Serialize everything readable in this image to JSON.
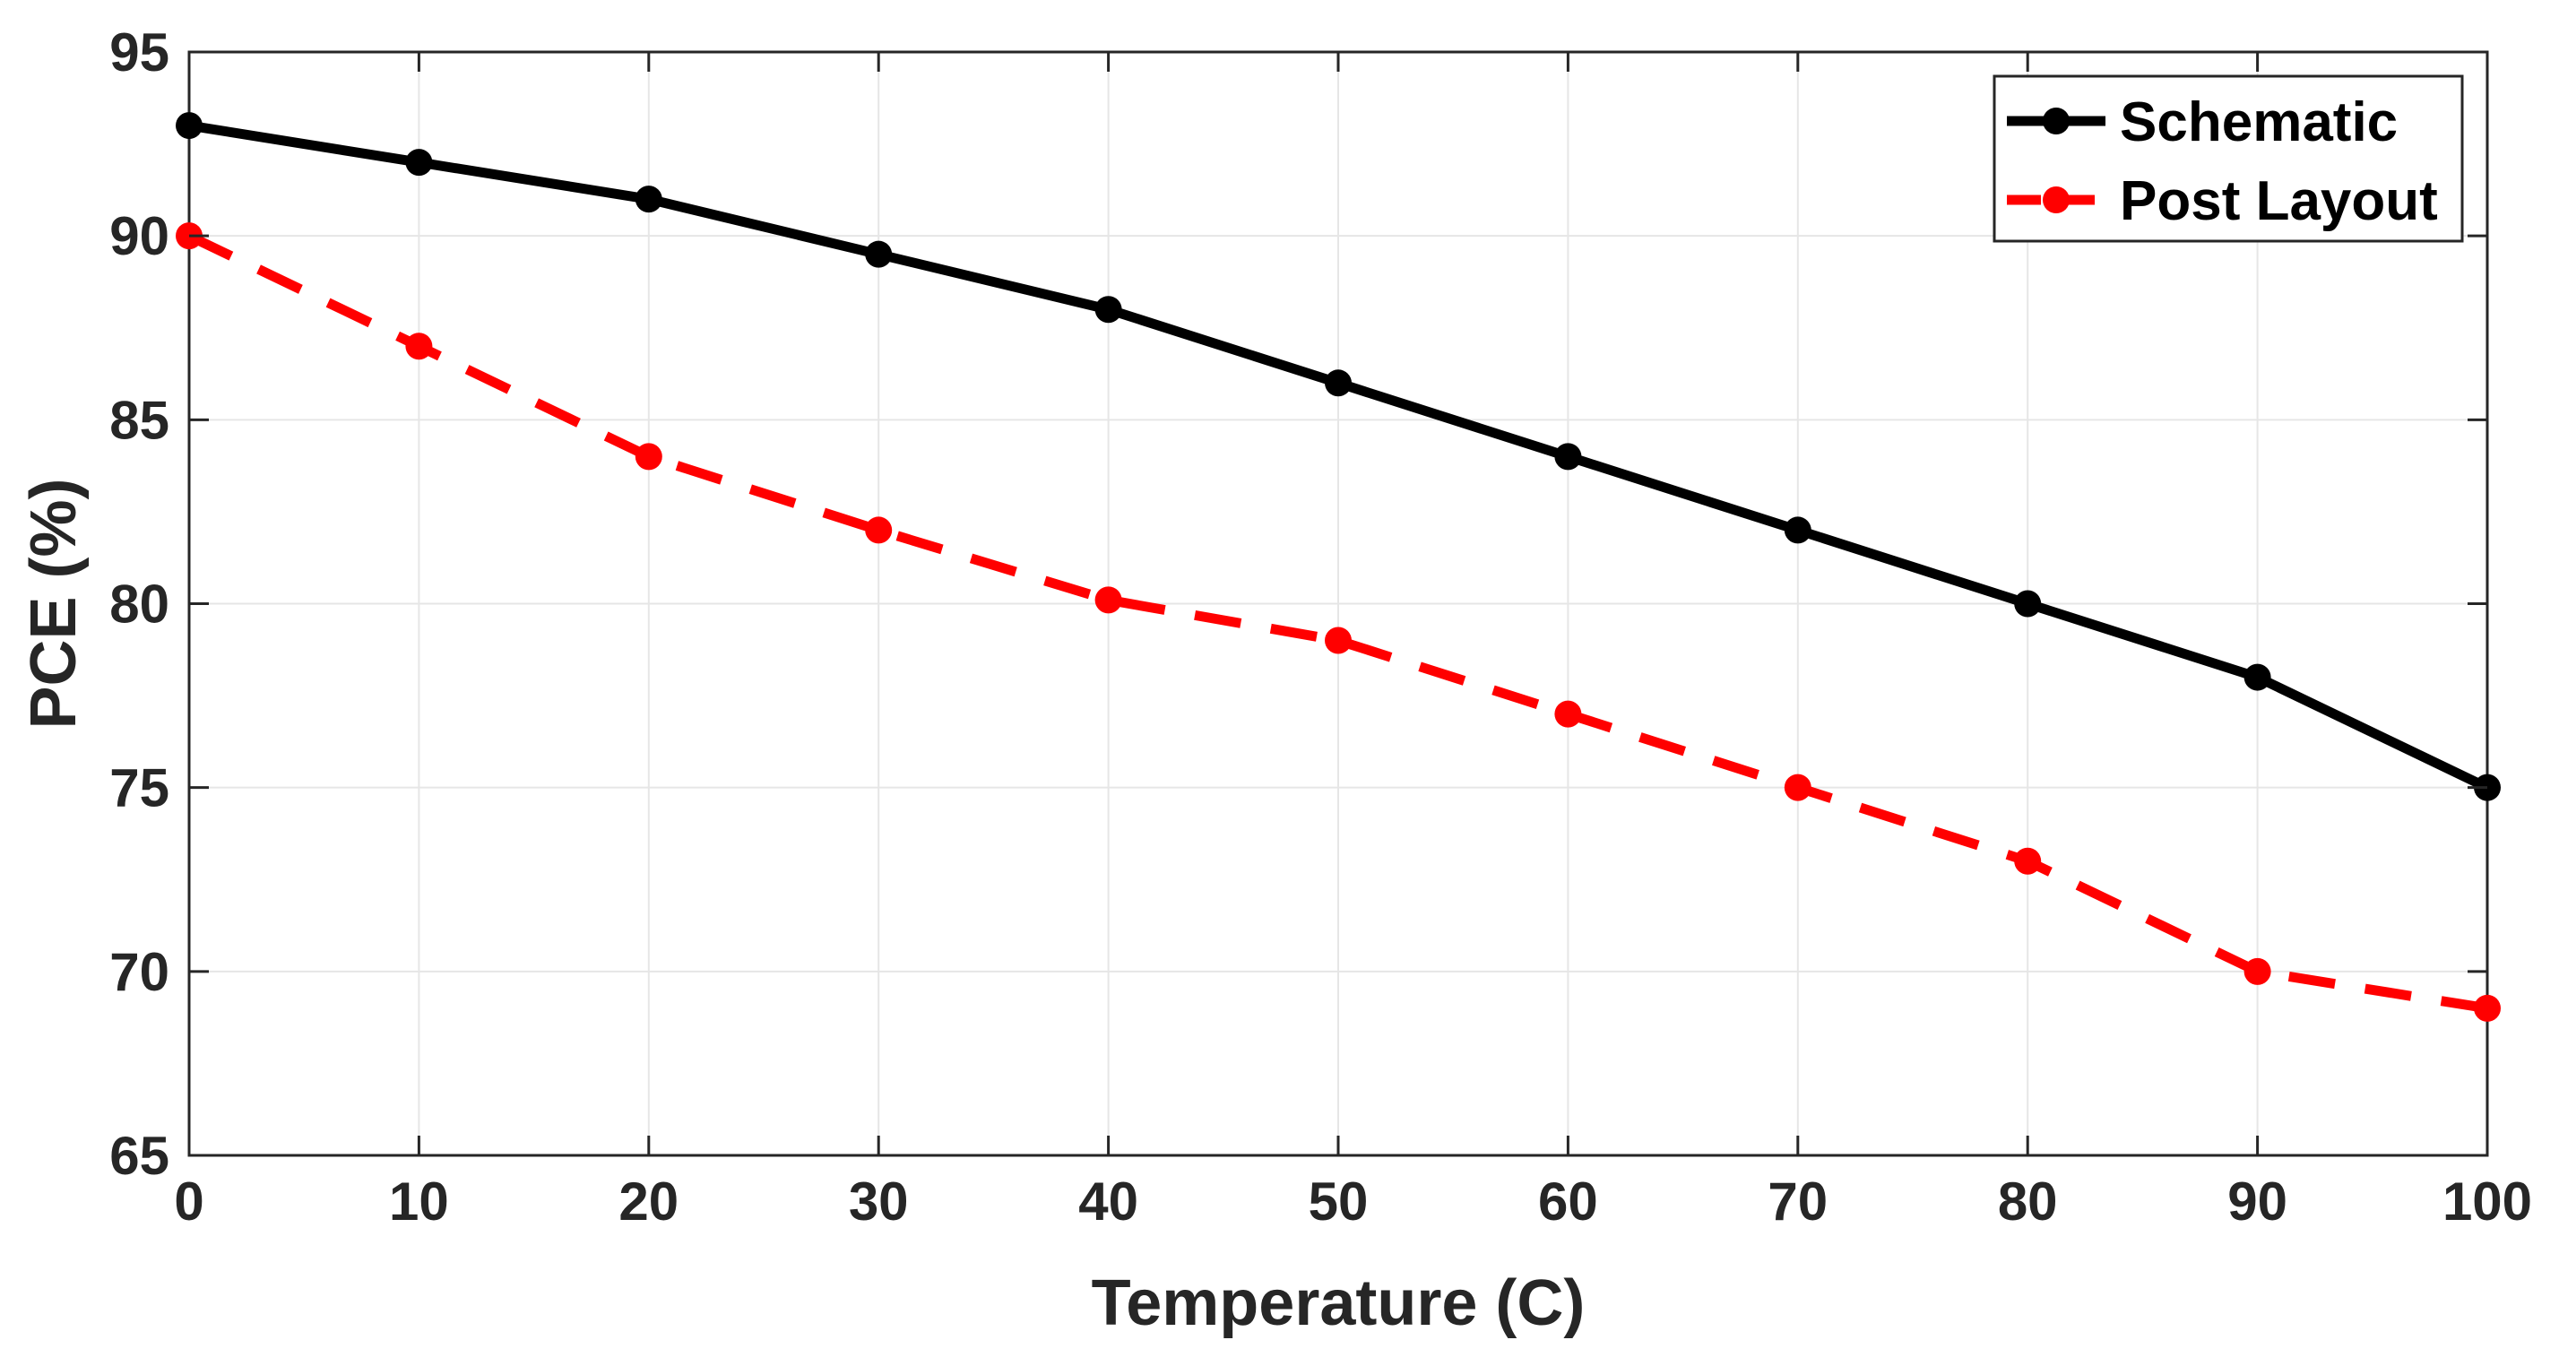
{
  "chart_data": {
    "type": "line",
    "title": "",
    "xlabel": "Temperature (C)",
    "ylabel": "PCE (%)",
    "xlim": [
      0,
      100
    ],
    "ylim": [
      65,
      95
    ],
    "xticks": [
      0,
      10,
      20,
      30,
      40,
      50,
      60,
      70,
      80,
      90,
      100
    ],
    "yticks": [
      65,
      70,
      75,
      80,
      85,
      90,
      95
    ],
    "grid": true,
    "legend_position": "top-right",
    "x": [
      0,
      10,
      20,
      30,
      40,
      50,
      60,
      70,
      80,
      90,
      100
    ],
    "series": [
      {
        "name": "Schematic",
        "color": "#000000",
        "line_style": "solid",
        "marker": "circle",
        "values": [
          93,
          92,
          91,
          89.5,
          88,
          86,
          84,
          82,
          80,
          78,
          75
        ]
      },
      {
        "name": "Post Layout",
        "color": "#ff0000",
        "line_style": "dashed",
        "marker": "circle",
        "values": [
          90,
          87,
          84,
          82,
          80.1,
          79,
          77,
          75,
          73,
          70,
          69
        ]
      }
    ]
  }
}
